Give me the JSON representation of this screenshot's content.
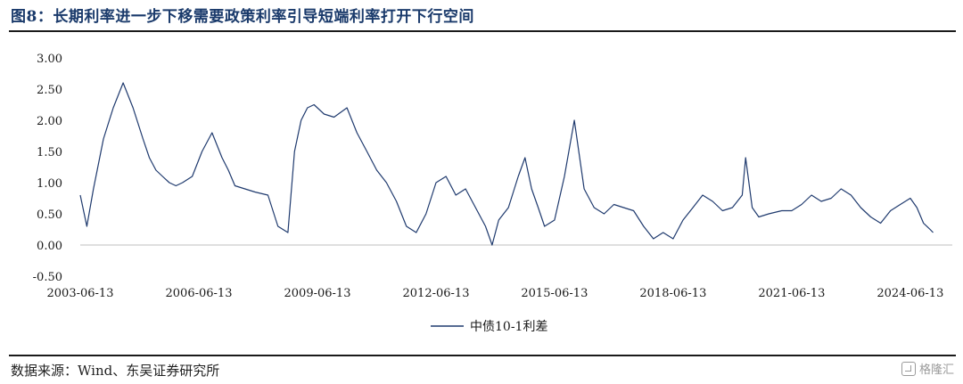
{
  "header": {
    "title": "图8：长期利率进一步下移需要政策利率引导短端利率打开下行空间"
  },
  "footer": {
    "source": "数据来源：Wind、东吴证券研究所",
    "watermark": "格隆汇"
  },
  "chart_data": {
    "type": "line",
    "title": "",
    "xlabel": "",
    "ylabel": "",
    "ylim": [
      -0.5,
      3.0
    ],
    "y_ticks": [
      "3.00",
      "2.50",
      "2.00",
      "1.50",
      "1.00",
      "0.50",
      "0.00",
      "-0.50"
    ],
    "x_ticks": [
      "2003-06-13",
      "2006-06-13",
      "2009-06-13",
      "2012-06-13",
      "2015-06-13",
      "2018-06-13",
      "2021-06-13",
      "2024-06-13"
    ],
    "xlim": [
      "2003-06-13",
      "2025-01-10"
    ],
    "grid": false,
    "legend_position": "bottom-center",
    "line_color": "#1f3a6e",
    "series": [
      {
        "name": "中债10-1利差",
        "x": [
          "2003-06-13",
          "2003-08-13",
          "2003-10-13",
          "2004-01-13",
          "2004-04-13",
          "2004-07-13",
          "2004-10-13",
          "2005-01-13",
          "2005-03-13",
          "2005-05-13",
          "2005-07-13",
          "2005-09-13",
          "2005-11-13",
          "2006-01-13",
          "2006-04-13",
          "2006-07-13",
          "2006-10-13",
          "2007-01-13",
          "2007-03-13",
          "2007-05-13",
          "2007-08-13",
          "2007-11-13",
          "2008-03-13",
          "2008-06-13",
          "2008-09-13",
          "2008-11-13",
          "2009-01-13",
          "2009-03-13",
          "2009-05-13",
          "2009-08-13",
          "2009-11-13",
          "2010-03-13",
          "2010-06-13",
          "2010-09-13",
          "2010-12-13",
          "2011-03-13",
          "2011-06-13",
          "2011-09-13",
          "2011-12-13",
          "2012-03-13",
          "2012-06-13",
          "2012-09-13",
          "2012-12-13",
          "2013-03-13",
          "2013-06-13",
          "2013-09-13",
          "2013-11-13",
          "2014-01-13",
          "2014-04-13",
          "2014-07-13",
          "2014-09-13",
          "2014-11-13",
          "2015-01-13",
          "2015-03-13",
          "2015-06-13",
          "2015-09-13",
          "2015-12-13",
          "2016-03-13",
          "2016-06-13",
          "2016-09-13",
          "2016-12-13",
          "2017-03-13",
          "2017-06-13",
          "2017-09-13",
          "2017-12-13",
          "2018-03-13",
          "2018-06-13",
          "2018-09-13",
          "2018-12-13",
          "2019-03-13",
          "2019-06-13",
          "2019-09-13",
          "2019-12-13",
          "2020-03-13",
          "2020-04-13",
          "2020-06-13",
          "2020-08-13",
          "2020-11-13",
          "2021-03-13",
          "2021-06-13",
          "2021-09-13",
          "2021-12-13",
          "2022-03-13",
          "2022-06-13",
          "2022-09-13",
          "2022-12-13",
          "2023-03-13",
          "2023-06-13",
          "2023-09-13",
          "2023-12-13",
          "2024-03-13",
          "2024-06-13",
          "2024-08-13",
          "2024-10-13",
          "2024-12-13",
          "2025-01-10"
        ],
        "values": [
          0.8,
          0.3,
          0.9,
          1.7,
          2.2,
          2.6,
          2.2,
          1.7,
          1.4,
          1.2,
          1.1,
          1.0,
          0.95,
          1.0,
          1.1,
          1.5,
          1.8,
          1.4,
          1.2,
          0.95,
          0.9,
          0.85,
          0.8,
          0.3,
          0.2,
          1.5,
          2.0,
          2.2,
          2.25,
          2.1,
          2.05,
          2.2,
          1.8,
          1.5,
          1.2,
          1.0,
          0.7,
          0.3,
          0.2,
          0.5,
          1.0,
          1.1,
          0.8,
          0.9,
          0.6,
          0.3,
          0.0,
          0.4,
          0.6,
          1.1,
          1.4,
          0.9,
          0.6,
          0.3,
          0.4,
          1.1,
          2.0,
          0.9,
          0.6,
          0.5,
          0.65,
          0.6,
          0.55,
          0.3,
          0.1,
          0.2,
          0.1,
          0.4,
          0.6,
          0.8,
          0.7,
          0.55,
          0.6,
          0.8,
          1.4,
          0.6,
          0.45,
          0.5,
          0.55,
          0.55,
          0.65,
          0.8,
          0.7,
          0.75,
          0.9,
          0.8,
          0.6,
          0.45,
          0.35,
          0.55,
          0.65,
          0.75,
          0.6,
          0.35,
          0.25,
          0.2
        ]
      }
    ]
  }
}
